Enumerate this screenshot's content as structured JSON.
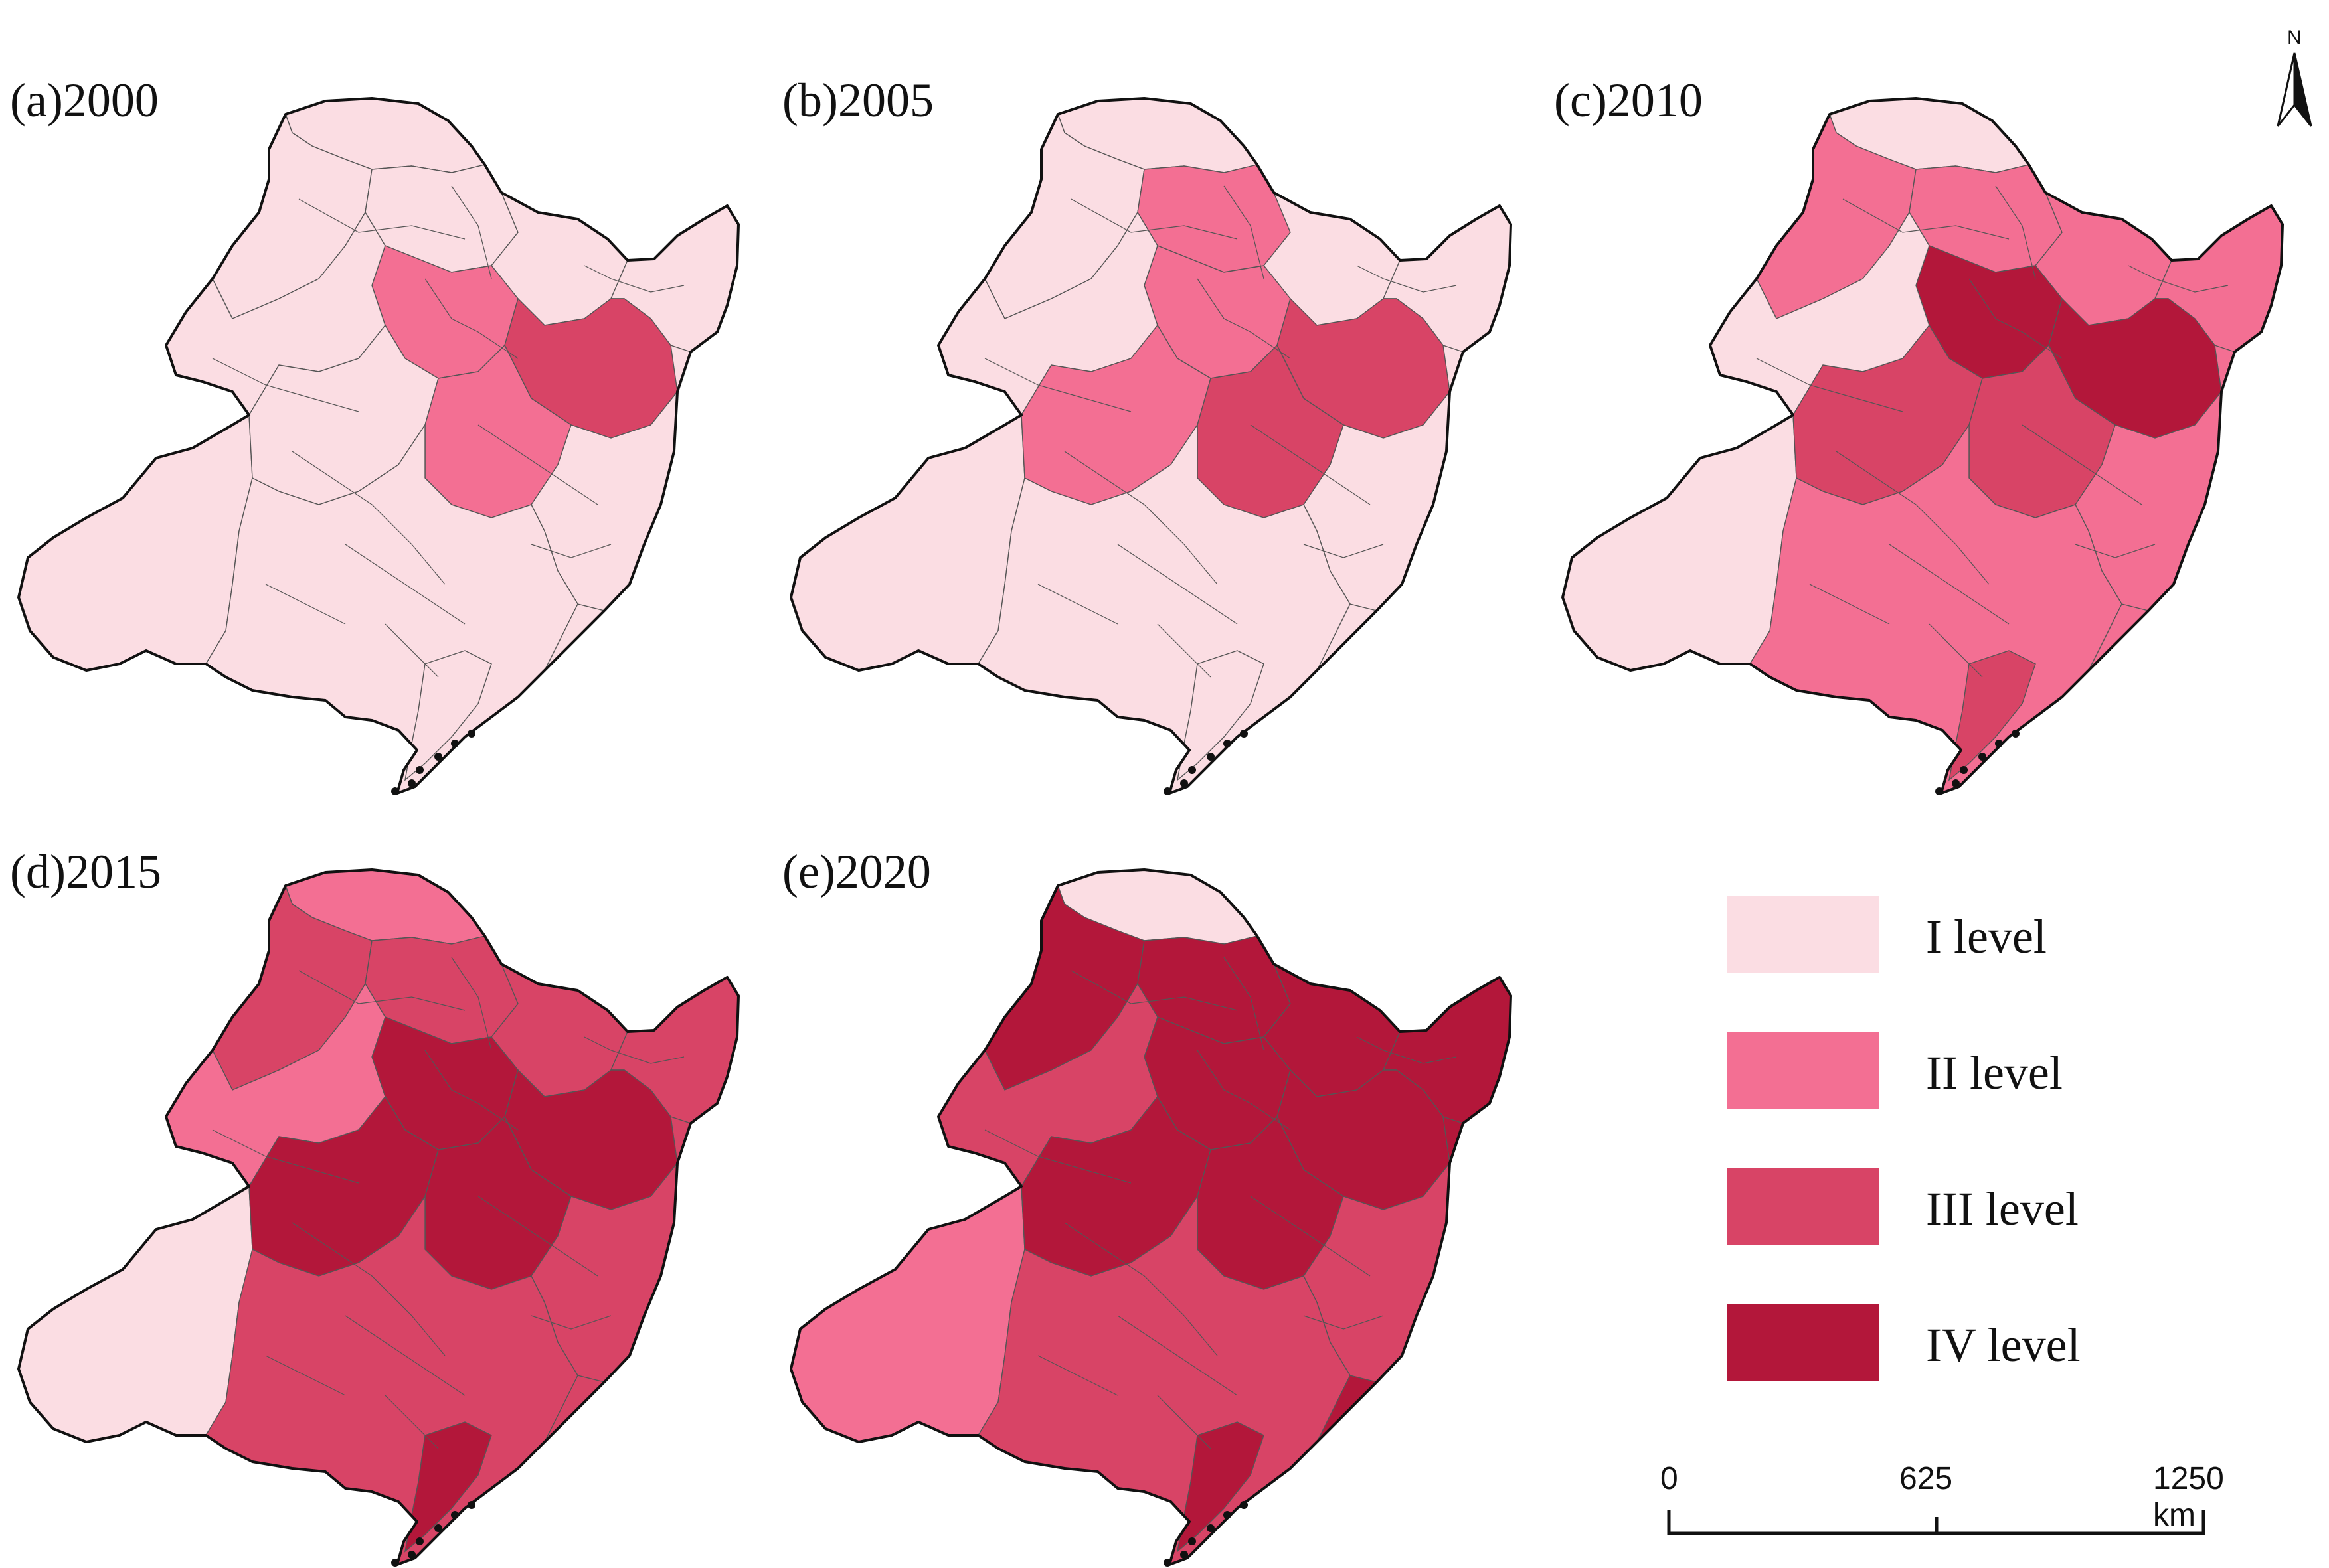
{
  "colors": {
    "level_1": "#fbdde3",
    "level_2": "#f36f93",
    "level_3": "#d84466",
    "level_4": "#b3173a",
    "outline": "#111111",
    "inner_border": "#555555"
  },
  "panels": [
    {
      "label": "(a)2000",
      "dominant_level": 1
    },
    {
      "label": "(b)2005",
      "dominant_level": 1
    },
    {
      "label": "(c)2010",
      "dominant_level": 2
    },
    {
      "label": "(d)2015",
      "dominant_level": 3
    },
    {
      "label": "(e)2020",
      "dominant_level": 4
    }
  ],
  "legend": {
    "items": [
      {
        "label": "I  level",
        "color": "#fbdde3"
      },
      {
        "label": "II  level",
        "color": "#f36f93"
      },
      {
        "label": "III level",
        "color": "#d84466"
      },
      {
        "label": "IV level",
        "color": "#b3173a"
      }
    ]
  },
  "scale_bar": {
    "ticks": [
      "0",
      "625",
      "1250 km"
    ]
  },
  "north_arrow": {
    "label": "N",
    "icon": "north-arrow-icon"
  }
}
